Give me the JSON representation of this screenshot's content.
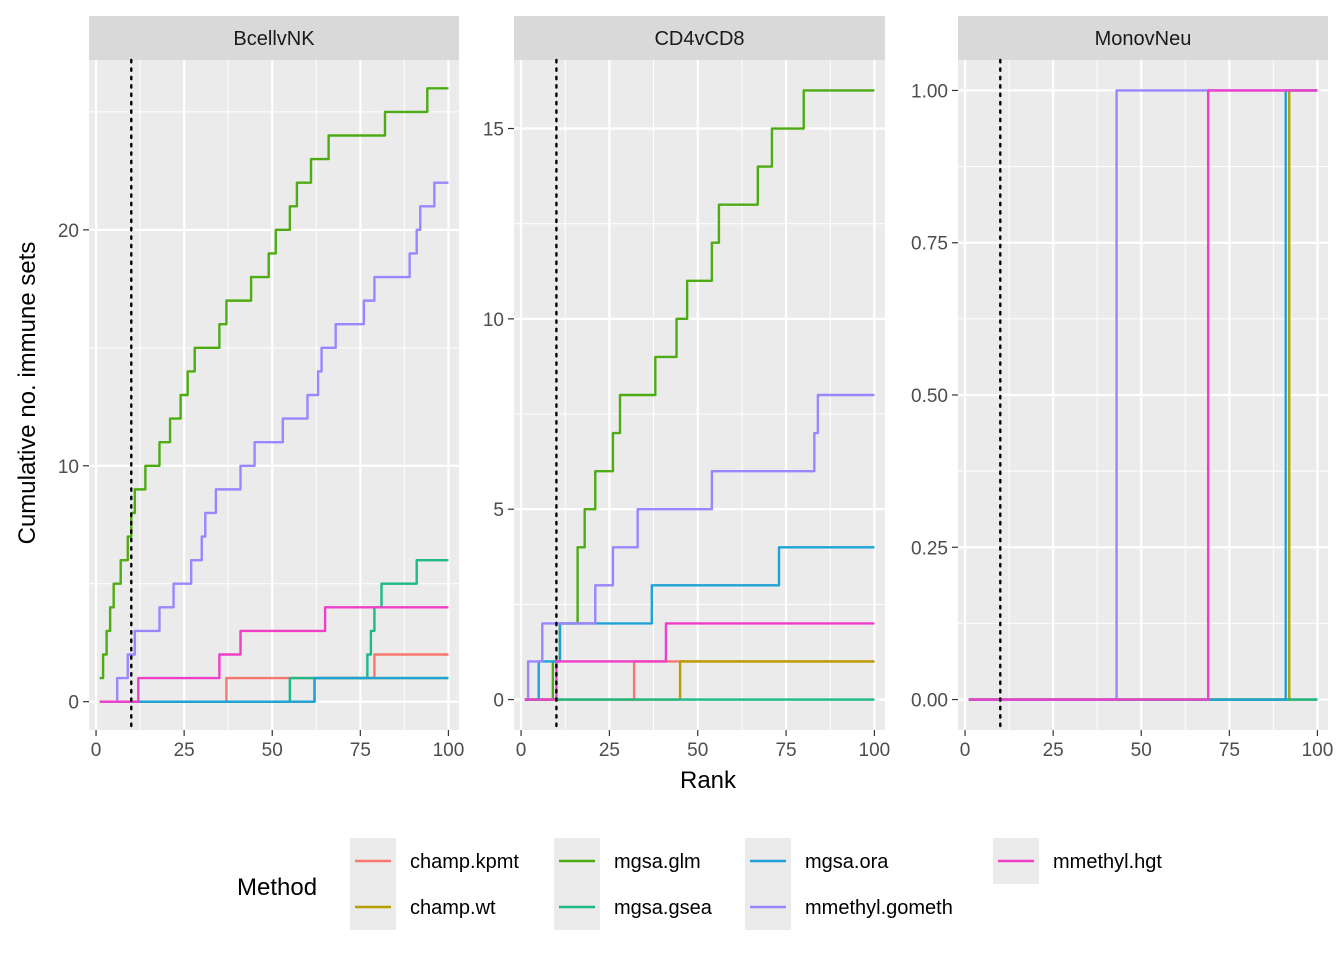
{
  "chart_data": {
    "type": "line",
    "xlabel": "Rank",
    "ylabel": "Cumulative no. immune sets",
    "reference_line_x": 10,
    "legend": {
      "title": "Method",
      "placement": "bottom",
      "entries": [
        {
          "name": "champ.kpmt",
          "color": "#F8766D"
        },
        {
          "name": "champ.wt",
          "color": "#B79F00"
        },
        {
          "name": "mgsa.glm",
          "color": "#4DAC13"
        },
        {
          "name": "mgsa.gsea",
          "color": "#1DB987"
        },
        {
          "name": "mgsa.ora",
          "color": "#1FA2D8"
        },
        {
          "name": "mmethyl.gometh",
          "color": "#9D85FF"
        },
        {
          "name": "mmethyl.hgt",
          "color": "#F03EC9"
        }
      ]
    },
    "panels": [
      {
        "title": "BcellvNK",
        "xlim": [
          -2,
          103
        ],
        "ylim": [
          -1.2,
          27.2
        ],
        "xticks": [
          0,
          25,
          50,
          75,
          100
        ],
        "yticks": [
          0,
          10,
          20
        ],
        "yticklabels": [
          "0",
          "10",
          "20"
        ],
        "series": [
          {
            "name": "champ.kpmt",
            "steps": [
              [
                1,
                0
              ],
              [
                37,
                1
              ],
              [
                79,
                2
              ],
              [
                100,
                2
              ]
            ]
          },
          {
            "name": "champ.wt",
            "steps": [
              [
                1,
                0
              ],
              [
                62,
                1
              ],
              [
                100,
                1
              ]
            ]
          },
          {
            "name": "mgsa.glm",
            "steps": [
              [
                1,
                1
              ],
              [
                2,
                2
              ],
              [
                3,
                3
              ],
              [
                4,
                4
              ],
              [
                5,
                5
              ],
              [
                7,
                6
              ],
              [
                9,
                7
              ],
              [
                10,
                8
              ],
              [
                11,
                9
              ],
              [
                14,
                10
              ],
              [
                18,
                11
              ],
              [
                21,
                12
              ],
              [
                24,
                13
              ],
              [
                26,
                14
              ],
              [
                28,
                15
              ],
              [
                35,
                16
              ],
              [
                37,
                17
              ],
              [
                44,
                18
              ],
              [
                49,
                19
              ],
              [
                51,
                20
              ],
              [
                55,
                21
              ],
              [
                57,
                22
              ],
              [
                61,
                23
              ],
              [
                66,
                24
              ],
              [
                82,
                25
              ],
              [
                94,
                26
              ],
              [
                100,
                26
              ]
            ]
          },
          {
            "name": "mgsa.gsea",
            "steps": [
              [
                1,
                0
              ],
              [
                55,
                1
              ],
              [
                77,
                2
              ],
              [
                78,
                3
              ],
              [
                79,
                4
              ],
              [
                81,
                5
              ],
              [
                91,
                6
              ],
              [
                100,
                6
              ]
            ]
          },
          {
            "name": "mgsa.ora",
            "steps": [
              [
                1,
                0
              ],
              [
                62,
                1
              ],
              [
                100,
                1
              ]
            ]
          },
          {
            "name": "mmethyl.gometh",
            "steps": [
              [
                1,
                0
              ],
              [
                6,
                1
              ],
              [
                9,
                2
              ],
              [
                11,
                3
              ],
              [
                18,
                4
              ],
              [
                22,
                5
              ],
              [
                27,
                6
              ],
              [
                30,
                7
              ],
              [
                31,
                8
              ],
              [
                34,
                9
              ],
              [
                41,
                10
              ],
              [
                45,
                11
              ],
              [
                53,
                12
              ],
              [
                60,
                13
              ],
              [
                63,
                14
              ],
              [
                64,
                15
              ],
              [
                68,
                16
              ],
              [
                76,
                17
              ],
              [
                79,
                18
              ],
              [
                89,
                19
              ],
              [
                91,
                20
              ],
              [
                92,
                21
              ],
              [
                96,
                22
              ],
              [
                100,
                22
              ]
            ]
          },
          {
            "name": "mmethyl.hgt",
            "steps": [
              [
                1,
                0
              ],
              [
                12,
                1
              ],
              [
                35,
                2
              ],
              [
                41,
                3
              ],
              [
                65,
                4
              ],
              [
                100,
                4
              ]
            ]
          }
        ]
      },
      {
        "title": "CD4vCD8",
        "xlim": [
          -2,
          103
        ],
        "ylim": [
          -0.8,
          16.8
        ],
        "xticks": [
          0,
          25,
          50,
          75,
          100
        ],
        "yticks": [
          0,
          5,
          10,
          15
        ],
        "yticklabels": [
          "0",
          "5",
          "10",
          "15"
        ],
        "series": [
          {
            "name": "champ.kpmt",
            "steps": [
              [
                1,
                0
              ],
              [
                32,
                1
              ],
              [
                100,
                1
              ]
            ]
          },
          {
            "name": "champ.wt",
            "steps": [
              [
                1,
                0
              ],
              [
                45,
                1
              ],
              [
                100,
                1
              ]
            ]
          },
          {
            "name": "mgsa.glm",
            "steps": [
              [
                1,
                0
              ],
              [
                9,
                1
              ],
              [
                11,
                2
              ],
              [
                16,
                4
              ],
              [
                18,
                5
              ],
              [
                21,
                6
              ],
              [
                26,
                7
              ],
              [
                28,
                8
              ],
              [
                38,
                9
              ],
              [
                44,
                10
              ],
              [
                47,
                11
              ],
              [
                54,
                12
              ],
              [
                56,
                13
              ],
              [
                67,
                14
              ],
              [
                71,
                15
              ],
              [
                80,
                16
              ],
              [
                100,
                16
              ]
            ]
          },
          {
            "name": "mgsa.gsea",
            "steps": [
              [
                1,
                0
              ],
              [
                100,
                0
              ]
            ]
          },
          {
            "name": "mgsa.ora",
            "steps": [
              [
                1,
                0
              ],
              [
                5,
                1
              ],
              [
                11,
                2
              ],
              [
                37,
                3
              ],
              [
                73,
                4
              ],
              [
                100,
                4
              ]
            ]
          },
          {
            "name": "mmethyl.gometh",
            "steps": [
              [
                1,
                0
              ],
              [
                2,
                1
              ],
              [
                6,
                2
              ],
              [
                21,
                3
              ],
              [
                26,
                4
              ],
              [
                33,
                5
              ],
              [
                54,
                6
              ],
              [
                83,
                7
              ],
              [
                84,
                8
              ],
              [
                100,
                8
              ]
            ]
          },
          {
            "name": "mmethyl.hgt",
            "steps": [
              [
                1,
                0
              ],
              [
                10,
                1
              ],
              [
                41,
                2
              ],
              [
                100,
                2
              ]
            ]
          }
        ]
      },
      {
        "title": "MonovNeu",
        "xlim": [
          -2,
          103
        ],
        "ylim": [
          -0.05,
          1.05
        ],
        "xticks": [
          0,
          25,
          50,
          75,
          100
        ],
        "yticks": [
          0,
          0.25,
          0.5,
          0.75,
          1
        ],
        "yticklabels": [
          "0.00",
          "0.25",
          "0.50",
          "0.75",
          "1.00"
        ],
        "series": [
          {
            "name": "champ.kpmt",
            "steps": [
              [
                1,
                0
              ],
              [
                100,
                0
              ]
            ]
          },
          {
            "name": "champ.wt",
            "steps": [
              [
                1,
                0
              ],
              [
                92,
                1
              ],
              [
                100,
                1
              ]
            ]
          },
          {
            "name": "mgsa.glm",
            "steps": [
              [
                1,
                0
              ],
              [
                100,
                0
              ]
            ]
          },
          {
            "name": "mgsa.gsea",
            "steps": [
              [
                1,
                0
              ],
              [
                100,
                0
              ]
            ]
          },
          {
            "name": "mgsa.ora",
            "steps": [
              [
                1,
                0
              ],
              [
                91,
                1
              ],
              [
                100,
                1
              ]
            ]
          },
          {
            "name": "mmethyl.gometh",
            "steps": [
              [
                1,
                0
              ],
              [
                43,
                1
              ],
              [
                100,
                1
              ]
            ]
          },
          {
            "name": "mmethyl.hgt",
            "steps": [
              [
                1,
                0
              ],
              [
                69,
                1
              ],
              [
                100,
                1
              ]
            ]
          }
        ]
      }
    ]
  }
}
